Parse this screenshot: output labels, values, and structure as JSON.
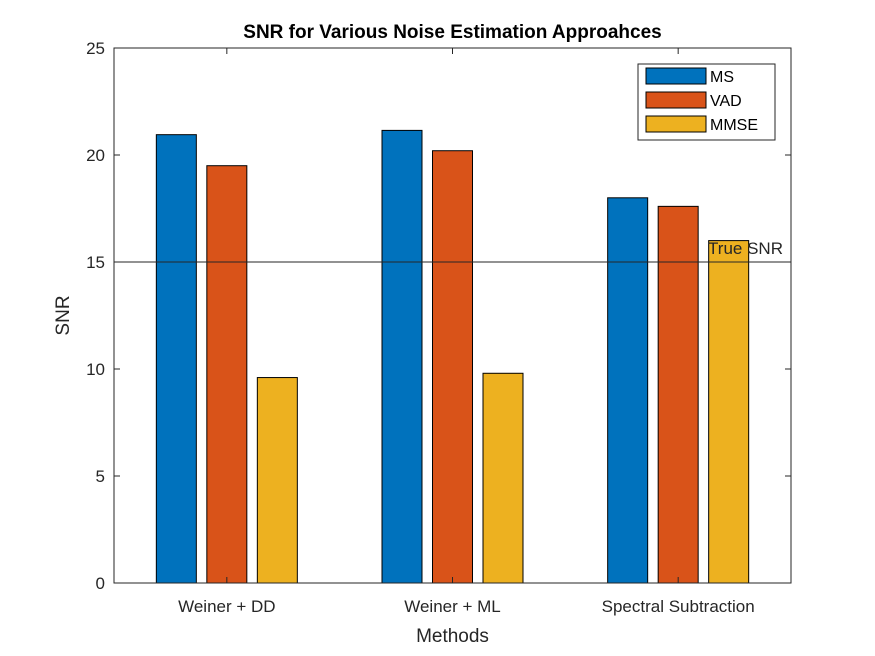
{
  "chart_data": {
    "type": "bar",
    "title": "SNR for Various Noise Estimation Approahces",
    "xlabel": "Methods",
    "ylabel": "SNR",
    "categories": [
      "Weiner + DD",
      "Weiner + ML",
      "Spectral Subtraction"
    ],
    "series": [
      {
        "name": "MS",
        "color": "#0072BD",
        "values": [
          20.95,
          21.15,
          18.0
        ]
      },
      {
        "name": "VAD",
        "color": "#D95319",
        "values": [
          19.5,
          20.2,
          17.6
        ]
      },
      {
        "name": "MMSE",
        "color": "#EDB120",
        "values": [
          9.6,
          9.8,
          16.0
        ]
      }
    ],
    "ylim": [
      0,
      25
    ],
    "yticks": [
      "0",
      "5",
      "10",
      "15",
      "20",
      "25"
    ],
    "grid": false,
    "legend_position": "top-right",
    "reference_line": {
      "value": 15,
      "label": "True SNR"
    }
  }
}
